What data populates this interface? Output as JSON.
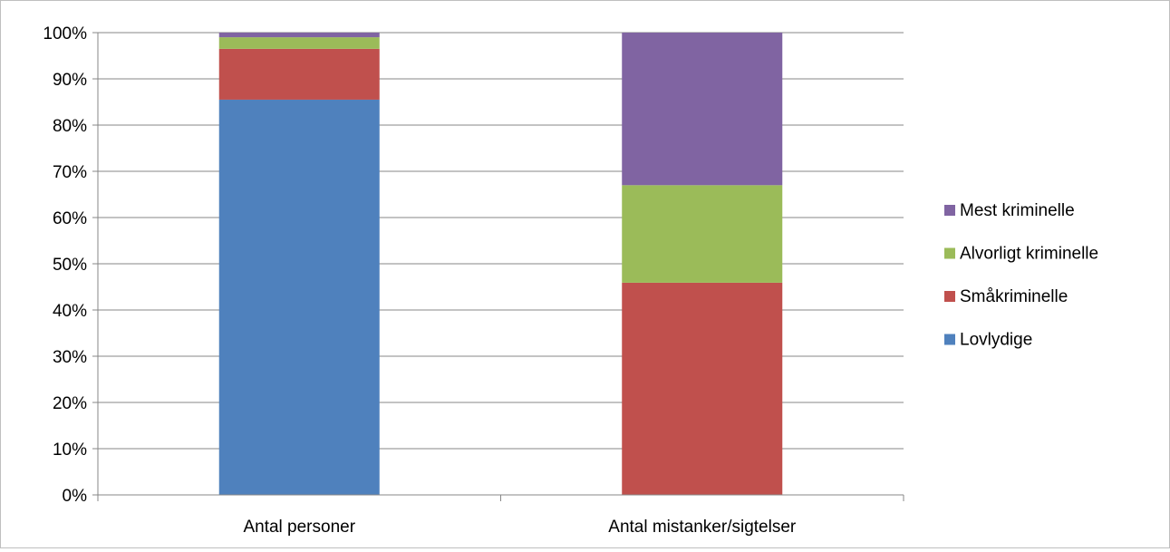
{
  "chart_data": {
    "type": "bar",
    "stacked": true,
    "percent_stacked": true,
    "title": "",
    "xlabel": "",
    "ylabel": "",
    "ylim": [
      0,
      100
    ],
    "y_ticks": [
      "0%",
      "10%",
      "20%",
      "30%",
      "40%",
      "50%",
      "60%",
      "70%",
      "80%",
      "90%",
      "100%"
    ],
    "categories": [
      "Antal personer",
      "Antal mistanker/sigtelser"
    ],
    "series": [
      {
        "name": "Lovlydige",
        "color": "#4f81bd",
        "values": [
          85.5,
          0
        ]
      },
      {
        "name": "Småkriminelle",
        "color": "#c0504d",
        "values": [
          11.0,
          45.9
        ]
      },
      {
        "name": "Alvorligt kriminelle",
        "color": "#9bbb59",
        "values": [
          2.5,
          21.1
        ]
      },
      {
        "name": "Mest kriminelle",
        "color": "#8064a2",
        "values": [
          1.0,
          33.0
        ]
      }
    ],
    "grid": true,
    "legend_position": "right"
  }
}
